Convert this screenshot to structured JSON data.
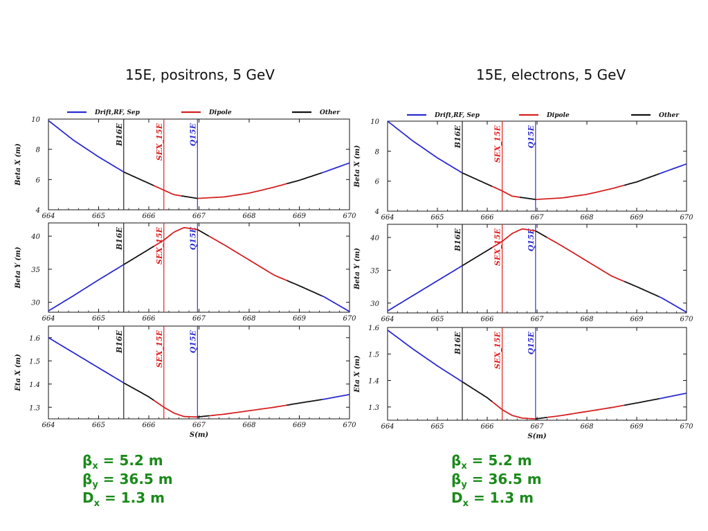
{
  "colors": {
    "drift": "#2a2ad0",
    "dipole": "#d42020",
    "other": "#111111",
    "element_black": "#222222",
    "element_red": "#e02020",
    "element_blue": "#3030d0",
    "summary_text": "#1a8a1a"
  },
  "legend": [
    {
      "label": "Drift,RF, Sep",
      "color_key": "drift"
    },
    {
      "label": "Dipole",
      "color_key": "dipole"
    },
    {
      "label": "Other",
      "color_key": "other"
    }
  ],
  "columns": [
    {
      "title": "15E, positrons, 5 GeV",
      "xlabel": "S(m)",
      "summary": [
        {
          "sym": "β",
          "sub": "x",
          "val": " = 5.2 m"
        },
        {
          "sym": "β",
          "sub": "y",
          "val": " = 36.5 m"
        },
        {
          "sym": "D",
          "sub": "x",
          "val": " = 1.3 m"
        }
      ]
    },
    {
      "title": "15E, electrons, 5 GeV",
      "xlabel": "S(m)",
      "summary": [
        {
          "sym": "β",
          "sub": "x",
          "val": " = 5.2 m"
        },
        {
          "sym": "β",
          "sub": "y",
          "val": " = 36.5 m"
        },
        {
          "sym": "D",
          "sub": "x",
          "val": " = 1.3 m"
        }
      ]
    }
  ],
  "chart_data": [
    {
      "type": "line",
      "column": 0,
      "ylabel": "Beta X (m)",
      "xlim": [
        664,
        670
      ],
      "ylim": [
        4,
        10
      ],
      "xticks": [
        664,
        665,
        666,
        667,
        668,
        669,
        670
      ],
      "yticks": [
        4,
        6,
        8,
        10
      ],
      "elements": [
        {
          "label": "B16E",
          "x": 665.5,
          "color_key": "element_black"
        },
        {
          "label": "SEX_15E",
          "x": 666.3,
          "color_key": "element_red"
        },
        {
          "label": "Q15E",
          "x": 666.97,
          "color_key": "element_blue"
        }
      ],
      "series": [
        {
          "points": [
            [
              664,
              9.9
            ],
            [
              664.5,
              8.6
            ],
            [
              665,
              7.5
            ],
            [
              665.5,
              6.5
            ],
            [
              666,
              5.75
            ],
            [
              666.3,
              5.3
            ],
            [
              666.5,
              5.0
            ],
            [
              666.97,
              4.75
            ],
            [
              667.5,
              4.85
            ],
            [
              668,
              5.1
            ],
            [
              668.5,
              5.5
            ],
            [
              669,
              5.95
            ],
            [
              669.5,
              6.5
            ],
            [
              670,
              7.1
            ]
          ]
        }
      ],
      "segments": [
        {
          "from": 664,
          "to": 665.5,
          "color_key": "drift"
        },
        {
          "from": 665.5,
          "to": 666.1,
          "color_key": "other"
        },
        {
          "from": 666.1,
          "to": 666.65,
          "color_key": "dipole"
        },
        {
          "from": 666.65,
          "to": 666.97,
          "color_key": "other"
        },
        {
          "from": 666.97,
          "to": 668.75,
          "color_key": "dipole"
        },
        {
          "from": 668.75,
          "to": 669.45,
          "color_key": "other"
        },
        {
          "from": 669.45,
          "to": 670,
          "color_key": "drift"
        }
      ]
    },
    {
      "type": "line",
      "column": 0,
      "ylabel": "Beta Y (m)",
      "xlim": [
        664,
        670
      ],
      "ylim": [
        28.5,
        42
      ],
      "xticks": [
        664,
        665,
        666,
        667,
        668,
        669,
        670
      ],
      "yticks": [
        30,
        35,
        40
      ],
      "elements": [
        {
          "label": "B16E",
          "x": 665.5,
          "color_key": "element_black"
        },
        {
          "label": "SEX_15E",
          "x": 666.3,
          "color_key": "element_red"
        },
        {
          "label": "Q15E",
          "x": 666.97,
          "color_key": "element_blue"
        }
      ],
      "series": [
        {
          "points": [
            [
              664,
              28.7
            ],
            [
              664.5,
              31.0
            ],
            [
              665,
              33.4
            ],
            [
              665.5,
              35.7
            ],
            [
              666,
              38.0
            ],
            [
              666.3,
              39.4
            ],
            [
              666.5,
              40.6
            ],
            [
              666.7,
              41.3
            ],
            [
              666.97,
              41.0
            ],
            [
              667.5,
              38.7
            ],
            [
              668,
              36.4
            ],
            [
              668.5,
              34.1
            ],
            [
              669,
              32.5
            ],
            [
              669.5,
              30.8
            ],
            [
              670,
              28.6
            ]
          ]
        }
      ],
      "segments": [
        {
          "from": 664,
          "to": 665.5,
          "color_key": "drift"
        },
        {
          "from": 665.5,
          "to": 666.1,
          "color_key": "other"
        },
        {
          "from": 666.1,
          "to": 666.97,
          "color_key": "dipole"
        },
        {
          "from": 666.97,
          "to": 667.2,
          "color_key": "other"
        },
        {
          "from": 667.2,
          "to": 668.75,
          "color_key": "dipole"
        },
        {
          "from": 668.75,
          "to": 669.45,
          "color_key": "other"
        },
        {
          "from": 669.45,
          "to": 670,
          "color_key": "drift"
        }
      ]
    },
    {
      "type": "line",
      "column": 0,
      "ylabel": "Eta X (m)",
      "xlim": [
        664,
        670
      ],
      "ylim": [
        1.25,
        1.65
      ],
      "xticks": [
        664,
        665,
        666,
        667,
        668,
        669,
        670
      ],
      "yticks": [
        1.3,
        1.4,
        1.5,
        1.6
      ],
      "elements": [
        {
          "label": "B16E",
          "x": 665.5,
          "color_key": "element_black"
        },
        {
          "label": "SEX_15E",
          "x": 666.3,
          "color_key": "element_red"
        },
        {
          "label": "Q15E",
          "x": 666.97,
          "color_key": "element_blue"
        }
      ],
      "series": [
        {
          "points": [
            [
              664,
              1.6
            ],
            [
              664.5,
              1.535
            ],
            [
              665,
              1.47
            ],
            [
              665.5,
              1.405
            ],
            [
              666,
              1.345
            ],
            [
              666.3,
              1.3
            ],
            [
              666.5,
              1.275
            ],
            [
              666.7,
              1.26
            ],
            [
              666.97,
              1.258
            ],
            [
              667.5,
              1.27
            ],
            [
              668,
              1.285
            ],
            [
              668.5,
              1.3
            ],
            [
              669,
              1.318
            ],
            [
              669.5,
              1.335
            ],
            [
              670,
              1.355
            ]
          ]
        }
      ],
      "segments": [
        {
          "from": 664,
          "to": 665.5,
          "color_key": "drift"
        },
        {
          "from": 665.5,
          "to": 666.1,
          "color_key": "other"
        },
        {
          "from": 666.1,
          "to": 666.97,
          "color_key": "dipole"
        },
        {
          "from": 666.97,
          "to": 667.2,
          "color_key": "other"
        },
        {
          "from": 667.2,
          "to": 668.75,
          "color_key": "dipole"
        },
        {
          "from": 668.75,
          "to": 669.45,
          "color_key": "other"
        },
        {
          "from": 669.45,
          "to": 670,
          "color_key": "drift"
        }
      ]
    },
    {
      "type": "line",
      "column": 1,
      "ylabel": "Beta X (m)",
      "xlim": [
        664,
        670
      ],
      "ylim": [
        4,
        10
      ],
      "xticks": [
        664,
        665,
        666,
        667,
        668,
        669,
        670
      ],
      "yticks": [
        4,
        6,
        8,
        10
      ],
      "elements": [
        {
          "label": "B16E",
          "x": 665.5,
          "color_key": "element_black"
        },
        {
          "label": "SEX_15E",
          "x": 666.3,
          "color_key": "element_red"
        },
        {
          "label": "Q15E",
          "x": 666.97,
          "color_key": "element_blue"
        }
      ],
      "series": [
        {
          "points": [
            [
              664,
              10.0
            ],
            [
              664.5,
              8.7
            ],
            [
              665,
              7.55
            ],
            [
              665.5,
              6.55
            ],
            [
              666,
              5.8
            ],
            [
              666.3,
              5.35
            ],
            [
              666.5,
              5.0
            ],
            [
              666.97,
              4.78
            ],
            [
              667.5,
              4.88
            ],
            [
              668,
              5.12
            ],
            [
              668.5,
              5.5
            ],
            [
              669,
              5.95
            ],
            [
              669.5,
              6.55
            ],
            [
              670,
              7.15
            ]
          ]
        }
      ],
      "segments": [
        {
          "from": 664,
          "to": 665.5,
          "color_key": "drift"
        },
        {
          "from": 665.5,
          "to": 666.1,
          "color_key": "other"
        },
        {
          "from": 666.1,
          "to": 666.65,
          "color_key": "dipole"
        },
        {
          "from": 666.65,
          "to": 666.97,
          "color_key": "other"
        },
        {
          "from": 666.97,
          "to": 668.75,
          "color_key": "dipole"
        },
        {
          "from": 668.75,
          "to": 669.45,
          "color_key": "other"
        },
        {
          "from": 669.45,
          "to": 670,
          "color_key": "drift"
        }
      ]
    },
    {
      "type": "line",
      "column": 1,
      "ylabel": "Beta Y (m)",
      "xlim": [
        664,
        670
      ],
      "ylim": [
        28.5,
        42
      ],
      "xticks": [
        664,
        665,
        666,
        667,
        668,
        669,
        670
      ],
      "yticks": [
        30,
        35,
        40
      ],
      "elements": [
        {
          "label": "B16E",
          "x": 665.5,
          "color_key": "element_black"
        },
        {
          "label": "SEX_15E",
          "x": 666.3,
          "color_key": "element_red"
        },
        {
          "label": "Q15E",
          "x": 666.97,
          "color_key": "element_blue"
        }
      ],
      "series": [
        {
          "points": [
            [
              664,
              28.8
            ],
            [
              664.5,
              31.1
            ],
            [
              665,
              33.4
            ],
            [
              665.5,
              35.7
            ],
            [
              666,
              38.0
            ],
            [
              666.3,
              39.4
            ],
            [
              666.5,
              40.6
            ],
            [
              666.7,
              41.3
            ],
            [
              666.97,
              41.0
            ],
            [
              667.5,
              38.7
            ],
            [
              668,
              36.4
            ],
            [
              668.5,
              34.1
            ],
            [
              669,
              32.5
            ],
            [
              669.5,
              30.8
            ],
            [
              670,
              28.6
            ]
          ]
        }
      ],
      "segments": [
        {
          "from": 664,
          "to": 665.5,
          "color_key": "drift"
        },
        {
          "from": 665.5,
          "to": 666.1,
          "color_key": "other"
        },
        {
          "from": 666.1,
          "to": 666.97,
          "color_key": "dipole"
        },
        {
          "from": 666.97,
          "to": 667.2,
          "color_key": "other"
        },
        {
          "from": 667.2,
          "to": 668.75,
          "color_key": "dipole"
        },
        {
          "from": 668.75,
          "to": 669.45,
          "color_key": "other"
        },
        {
          "from": 669.45,
          "to": 670,
          "color_key": "drift"
        }
      ]
    },
    {
      "type": "line",
      "column": 1,
      "ylabel": "Eta X (m)",
      "xlim": [
        664,
        670
      ],
      "ylim": [
        1.25,
        1.6
      ],
      "xticks": [
        664,
        665,
        666,
        667,
        668,
        669,
        670
      ],
      "yticks": [
        1.3,
        1.4,
        1.5,
        1.6
      ],
      "elements": [
        {
          "label": "B16E",
          "x": 665.5,
          "color_key": "element_black"
        },
        {
          "label": "SEX_15E",
          "x": 666.3,
          "color_key": "element_red"
        },
        {
          "label": "Q15E",
          "x": 666.97,
          "color_key": "element_blue"
        }
      ],
      "series": [
        {
          "points": [
            [
              664,
              1.59
            ],
            [
              664.5,
              1.52
            ],
            [
              665,
              1.455
            ],
            [
              665.5,
              1.395
            ],
            [
              666,
              1.335
            ],
            [
              666.3,
              1.29
            ],
            [
              666.5,
              1.268
            ],
            [
              666.7,
              1.258
            ],
            [
              666.97,
              1.255
            ],
            [
              667.5,
              1.268
            ],
            [
              668,
              1.283
            ],
            [
              668.5,
              1.298
            ],
            [
              669,
              1.315
            ],
            [
              669.5,
              1.333
            ],
            [
              670,
              1.352
            ]
          ]
        }
      ],
      "segments": [
        {
          "from": 664,
          "to": 665.5,
          "color_key": "drift"
        },
        {
          "from": 665.5,
          "to": 666.1,
          "color_key": "other"
        },
        {
          "from": 666.1,
          "to": 666.97,
          "color_key": "dipole"
        },
        {
          "from": 666.97,
          "to": 667.2,
          "color_key": "other"
        },
        {
          "from": 667.2,
          "to": 668.75,
          "color_key": "dipole"
        },
        {
          "from": 668.75,
          "to": 669.45,
          "color_key": "other"
        },
        {
          "from": 669.45,
          "to": 670,
          "color_key": "drift"
        }
      ]
    }
  ]
}
